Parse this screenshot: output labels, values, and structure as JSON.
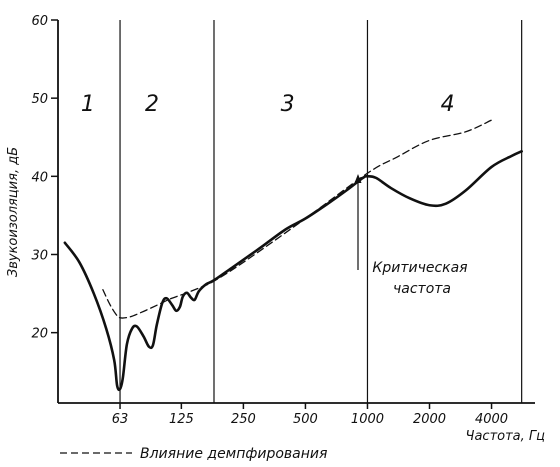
{
  "chart_data": {
    "type": "line",
    "title": "",
    "xlabel": "Частота, Гц",
    "ylabel": "Звукоизоляция, дБ",
    "x_scale": "log2",
    "x_ticks": [
      63,
      125,
      250,
      500,
      1000,
      2000,
      4000
    ],
    "x_tick_labels": [
      "63",
      "125",
      "250",
      "500",
      "1000",
      "2000",
      "4000"
    ],
    "xlim": [
      31.5,
      6500
    ],
    "ylim": [
      11,
      60
    ],
    "y_ticks": [
      20,
      30,
      40,
      50,
      60
    ],
    "y_tick_labels": [
      "20",
      "30",
      "40",
      "50",
      "60"
    ],
    "grid": false,
    "regions": [
      {
        "label": "1",
        "x_center": 44
      },
      {
        "label": "2",
        "x_center": 90
      },
      {
        "label": "3",
        "x_center": 410
      },
      {
        "label": "4",
        "x_center": 2450
      }
    ],
    "boundaries": [
      {
        "x": 63,
        "y_top": 60
      },
      {
        "x": 180,
        "y_top": 60
      },
      {
        "x": 1000,
        "y_top": 60
      },
      {
        "x": 5600,
        "y_top": 60
      }
    ],
    "series": [
      {
        "style": "solid",
        "points": [
          [
            34,
            31.5
          ],
          [
            40,
            29
          ],
          [
            47,
            25
          ],
          [
            54,
            20.5
          ],
          [
            59,
            16.5
          ],
          [
            61,
            13.2
          ],
          [
            63,
            12.8
          ],
          [
            65,
            14.2
          ],
          [
            68,
            18.5
          ],
          [
            72,
            20.5
          ],
          [
            76,
            20.8
          ],
          [
            82,
            19.5
          ],
          [
            87,
            18.2
          ],
          [
            91,
            18.4
          ],
          [
            95,
            21
          ],
          [
            101,
            23.8
          ],
          [
            106,
            24.4
          ],
          [
            113,
            23.5
          ],
          [
            118,
            22.8
          ],
          [
            123,
            23.3
          ],
          [
            127,
            24.6
          ],
          [
            133,
            25.1
          ],
          [
            139,
            24.5
          ],
          [
            145,
            24.2
          ],
          [
            152,
            25.3
          ],
          [
            165,
            26.2
          ],
          [
            180,
            26.7
          ],
          [
            220,
            28.3
          ],
          [
            300,
            30.8
          ],
          [
            400,
            33.2
          ],
          [
            500,
            34.6
          ],
          [
            650,
            36.6
          ],
          [
            800,
            38.3
          ],
          [
            950,
            39.8
          ],
          [
            1000,
            40
          ],
          [
            1100,
            39.8
          ],
          [
            1300,
            38.5
          ],
          [
            1600,
            37.2
          ],
          [
            2000,
            36.3
          ],
          [
            2400,
            36.5
          ],
          [
            3000,
            38.2
          ],
          [
            4000,
            41.2
          ],
          [
            5000,
            42.6
          ],
          [
            5600,
            43.2
          ]
        ]
      },
      {
        "style": "dashed",
        "name": "Влияние демпфирования",
        "points": [
          [
            52,
            25.5
          ],
          [
            56,
            23.7
          ],
          [
            60,
            22.4
          ],
          [
            63,
            21.9
          ],
          [
            70,
            22
          ],
          [
            80,
            22.6
          ],
          [
            95,
            23.5
          ],
          [
            110,
            24.3
          ],
          [
            130,
            25
          ],
          [
            155,
            25.8
          ],
          [
            180,
            26.6
          ],
          [
            250,
            29
          ],
          [
            500,
            34.6
          ],
          [
            1000,
            40.4
          ],
          [
            1400,
            42.5
          ],
          [
            2000,
            44.6
          ],
          [
            3000,
            45.7
          ],
          [
            4000,
            47.2
          ]
        ]
      }
    ],
    "annotations": [
      {
        "text_lines": [
          "Критическая",
          "частота"
        ],
        "arrow_to": [
          1000,
          40
        ]
      }
    ],
    "legend": {
      "position": "bottom-left",
      "entries": [
        {
          "style": "dashed",
          "text": "Влияние демпфирования"
        }
      ]
    }
  }
}
